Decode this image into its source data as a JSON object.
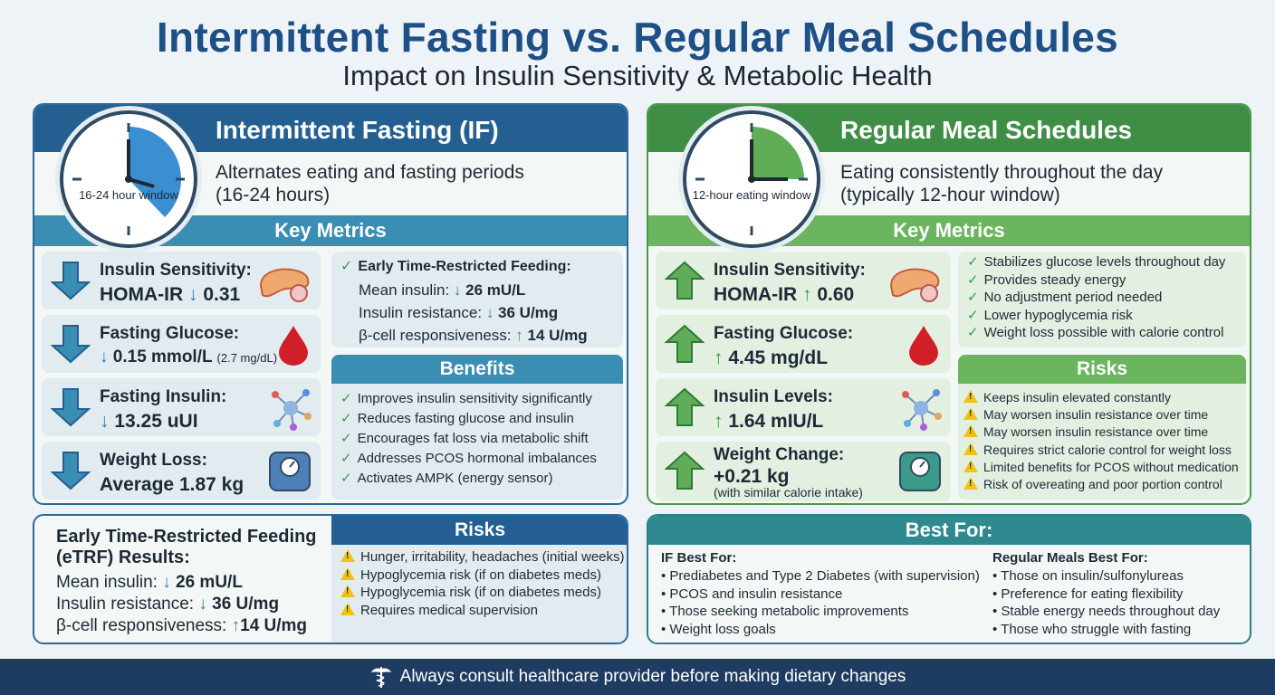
{
  "title": "Intermittent Fasting vs. Regular Meal Schedules",
  "subtitle": "Impact on Insulin Sensitivity & Metabolic Health",
  "colors": {
    "if_primary": "#245f92",
    "if_secondary": "#3a8db3",
    "reg_primary": "#3f8e46",
    "reg_secondary": "#6bb55f",
    "down_arrow": "#2f7db4",
    "up_arrow": "#3c9a44",
    "warning": "#f2c315"
  },
  "if": {
    "title": "Intermittent Fasting (IF)",
    "clock_label": "16-24 hour window",
    "desc_line1": "Alternates eating and fasting periods",
    "desc_line2": "(16-24 hours)",
    "key_metrics": "Key Metrics",
    "metrics": [
      {
        "name": "Insulin Sensitivity:",
        "value": "HOMA-IR",
        "arrow": "↓",
        "amount": "0.31",
        "icon": "pancreas-icon"
      },
      {
        "name": "Fasting Glucose:",
        "arrow": "↓",
        "amount": "0.15 mmol/L",
        "extra": "(2.7 mg/dL)",
        "icon": "blood-drop-icon"
      },
      {
        "name": "Fasting Insulin:",
        "arrow": "↓",
        "amount": "13.25 uUI",
        "icon": "insulin-molecule-icon"
      },
      {
        "name": "Weight Loss:",
        "value": "Average 1.87 kg",
        "icon": "scale-icon"
      }
    ],
    "etrf": {
      "title": "Early Time-Restricted Feeding:",
      "l1_label": "Mean insulin:",
      "l1_val": "26 mU/L",
      "l2_label": "Insulin resistance:",
      "l2_val": "36 U/mg",
      "l3_label": "β-cell responsiveness:",
      "l3_val": "14 U/mg"
    },
    "benefits_title": "Benefits",
    "benefits": [
      "Improves insulin sensitivity significantly",
      "Reduces fasting glucose and insulin",
      "Encourages fat loss via metabolic shift",
      "Addresses PCOS hormonal imbalances",
      "Activates AMPK (energy sensor)"
    ],
    "results": {
      "title_l1": "Early Time-Restricted Feeding",
      "title_l2": "(eTRF) Results:",
      "l1_label": "Mean insulin:",
      "l1_val": "26 mU/L",
      "l2_label": "Insulin resistance:",
      "l2_val": "36 U/mg",
      "l3_label": "β-cell responsiveness:",
      "l3_val": "14 U/mg"
    },
    "risks_title": "Risks",
    "risks": [
      "Hunger, irritability, headaches (initial weeks)",
      "Hypoglycemia risk (if on diabetes meds)",
      "Hypoglycemia risk (if on diabetes meds)",
      "Requires medical supervision"
    ]
  },
  "reg": {
    "title": "Regular Meal Schedules",
    "clock_label": "12-hour eating window",
    "desc_line1": "Eating consistently throughout the day",
    "desc_line2": "(typically 12-hour window)",
    "key_metrics": "Key Metrics",
    "metrics": [
      {
        "name": "Insulin Sensitivity:",
        "value": "HOMA-IR",
        "arrow": "↑",
        "amount": "0.60",
        "icon": "pancreas-icon"
      },
      {
        "name": "Fasting Glucose:",
        "arrow": "↑",
        "amount": "4.45 mg/dL",
        "icon": "blood-drop-icon"
      },
      {
        "name": "Insulin Levels:",
        "arrow": "↑",
        "amount": "1.64 mIU/L",
        "icon": "insulin-molecule-icon"
      },
      {
        "name": "Weight Change:",
        "value": "+0.21 kg",
        "note": "(with similar calorie intake)",
        "icon": "scale-icon"
      }
    ],
    "benefits": [
      "Stabilizes glucose levels throughout day",
      "Provides steady energy",
      "No adjustment period needed",
      "Lower hypoglycemia risk",
      "Weight loss possible with calorie control"
    ],
    "risks_title": "Risks",
    "risks": [
      "Keeps insulin elevated constantly",
      "May worsen insulin resistance over time",
      "May worsen insulin resistance over time",
      "Requires strict calorie control for weight loss",
      "Limited benefits for PCOS without medication",
      "Risk of overeating and poor portion control"
    ]
  },
  "best_for": {
    "title": "Best For:",
    "if_title": "IF Best For:",
    "if_items": [
      "Prediabetes and Type 2 Diabetes (with supervision)",
      "PCOS and insulin resistance",
      "Those seeking metabolic improvements",
      "Weight loss goals"
    ],
    "reg_title": "Regular Meals Best For:",
    "reg_items": [
      "Those on insulin/sulfonylureas",
      "Preference for eating flexibility",
      "Stable energy needs throughout day",
      "Those who struggle with fasting"
    ]
  },
  "footer": "Always consult healthcare provider before making dietary changes"
}
